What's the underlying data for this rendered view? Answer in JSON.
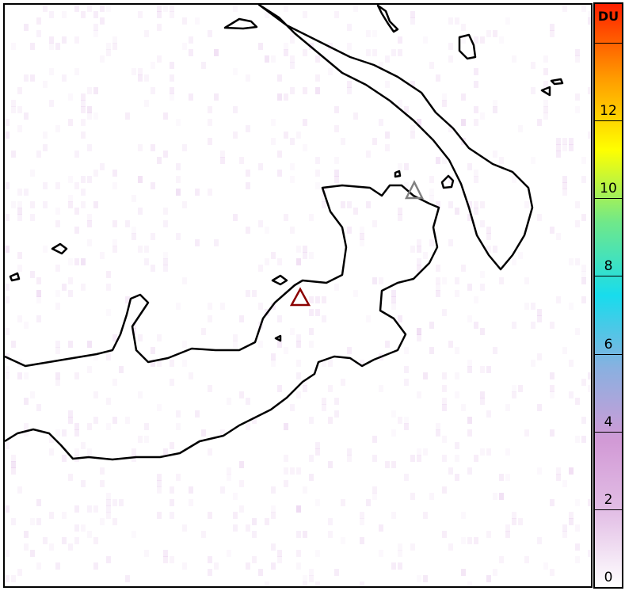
{
  "colorbar": {
    "unit": "DU",
    "range": [
      0,
      15
    ],
    "tick_labels": [
      "0",
      "2",
      "4",
      "6",
      "8",
      "10",
      "12"
    ],
    "unlabeled_ticks": [
      14
    ],
    "colors": [
      "#ffffff",
      "#e3c0e6",
      "#d29ad6",
      "#8ab0e0",
      "#18dced",
      "#6fe88a",
      "#ffff00",
      "#ff9900",
      "#ff2000"
    ]
  },
  "map": {
    "markers": [
      {
        "name": "volcano-marker",
        "color": "#8b0000",
        "icon": "triangle"
      },
      {
        "name": "secondary-volcano-marker",
        "color": "#808080",
        "icon": "triangle"
      }
    ],
    "background_value_du": 0.5
  }
}
